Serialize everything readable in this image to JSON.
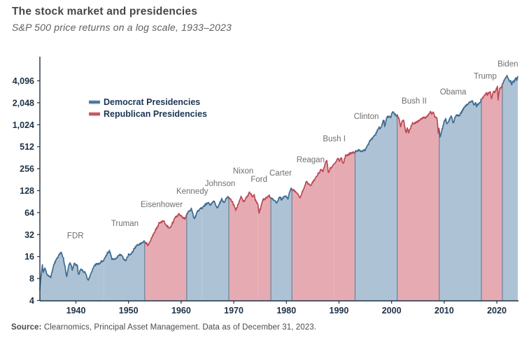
{
  "header": {
    "title": "The stock market and presidencies",
    "subtitle": "S&P 500 price returns on a log scale, 1933–2023"
  },
  "footer": {
    "source_label": "Source:",
    "source_text": " Clearnomics, Principal Asset Management. Data as of December 31, 2023."
  },
  "chart_data": {
    "type": "area",
    "title": "The stock market and presidencies",
    "subtitle": "S&P 500 price returns on a log scale, 1933–2023",
    "y_axis": {
      "scale": "log2",
      "tick_values": [
        4,
        8,
        16,
        32,
        64,
        128,
        256,
        512,
        1024,
        2048,
        4096
      ],
      "tick_labels": [
        "4",
        "8",
        "16",
        "32",
        "64",
        "128",
        "256",
        "512",
        "1,024",
        "2,048",
        "4,096"
      ],
      "range": [
        4,
        6800
      ]
    },
    "x_axis": {
      "tick_values": [
        1940,
        1950,
        1960,
        1970,
        1980,
        1990,
        2000,
        2010,
        2020
      ],
      "tick_labels": [
        "1940",
        "1950",
        "1960",
        "1970",
        "1980",
        "1990",
        "2000",
        "2010",
        "2020"
      ],
      "range": [
        1933.15,
        2023.99
      ]
    },
    "legend": [
      {
        "label": "Democrat Presidencies",
        "party": "democrat"
      },
      {
        "label": "Republican Presidencies",
        "party": "republican"
      }
    ],
    "colors": {
      "democrat_fill": "#adc3d5",
      "democrat_line": "#3e6b92",
      "republican_fill": "#e6abb2",
      "republican_line": "#bc4a55",
      "boundary": "#6c88a0",
      "axis": "#1d3145",
      "tick_label": "#1d3145",
      "president_label": "#6f6f6f",
      "legend_text": "#1c3552"
    },
    "presidents": [
      {
        "name": "FDR",
        "party": "democrat",
        "start": 1933.15,
        "end": 1945.3,
        "label_year": 1939.9,
        "label_value": 31
      },
      {
        "name": "Truman",
        "party": "democrat",
        "start": 1945.3,
        "end": 1953.06,
        "label_year": 1949.3,
        "label_value": 46
      },
      {
        "name": "Eisenhower",
        "party": "republican",
        "start": 1953.06,
        "end": 1961.06,
        "label_year": 1956.3,
        "label_value": 83
      },
      {
        "name": "Kennedy",
        "party": "democrat",
        "start": 1961.06,
        "end": 1963.9,
        "label_year": 1962.1,
        "label_value": 126
      },
      {
        "name": "Johnson",
        "party": "democrat",
        "start": 1963.9,
        "end": 1969.06,
        "label_year": 1967.4,
        "label_value": 161
      },
      {
        "name": "Nixon",
        "party": "republican",
        "start": 1969.06,
        "end": 1974.6,
        "label_year": 1971.8,
        "label_value": 240
      },
      {
        "name": "Ford",
        "party": "republican",
        "start": 1974.6,
        "end": 1977.06,
        "label_year": 1974.8,
        "label_value": 184
      },
      {
        "name": "Carter",
        "party": "democrat",
        "start": 1977.06,
        "end": 1981.06,
        "label_year": 1978.9,
        "label_value": 224
      },
      {
        "name": "Reagan",
        "party": "republican",
        "start": 1981.06,
        "end": 1989.06,
        "label_year": 1984.6,
        "label_value": 342
      },
      {
        "name": "Bush I",
        "party": "republican",
        "start": 1989.06,
        "end": 1993.06,
        "label_year": 1989.1,
        "label_value": 662
      },
      {
        "name": "Clinton",
        "party": "democrat",
        "start": 1993.06,
        "end": 2001.06,
        "label_year": 1995.2,
        "label_value": 1340
      },
      {
        "name": "Bush II",
        "party": "republican",
        "start": 2001.06,
        "end": 2009.06,
        "label_year": 2004.3,
        "label_value": 2180
      },
      {
        "name": "Obama",
        "party": "democrat",
        "start": 2009.06,
        "end": 2017.06,
        "label_year": 2011.7,
        "label_value": 2900
      },
      {
        "name": "Trump",
        "party": "republican",
        "start": 2017.06,
        "end": 2021.06,
        "label_year": 2017.8,
        "label_value": 4800
      },
      {
        "name": "Biden",
        "party": "democrat",
        "start": 2021.06,
        "end": 2023.99,
        "label_year": 2022.1,
        "label_value": 7000
      }
    ],
    "series_anchors": [
      [
        1933.15,
        5.6
      ],
      [
        1933.3,
        7.8
      ],
      [
        1933.62,
        12.2
      ],
      [
        1933.8,
        9.6
      ],
      [
        1934.1,
        11.2
      ],
      [
        1934.6,
        8.8
      ],
      [
        1935.2,
        8.3
      ],
      [
        1935.9,
        13.0
      ],
      [
        1936.9,
        17.2
      ],
      [
        1937.2,
        18.6
      ],
      [
        1937.6,
        15.2
      ],
      [
        1938.25,
        8.6
      ],
      [
        1938.6,
        11.8
      ],
      [
        1938.9,
        13.1
      ],
      [
        1939.3,
        10.7
      ],
      [
        1939.75,
        12.9
      ],
      [
        1940.3,
        12.0
      ],
      [
        1940.45,
        8.9
      ],
      [
        1940.9,
        10.6
      ],
      [
        1941.7,
        9.8
      ],
      [
        1942.35,
        7.5
      ],
      [
        1943.1,
        10.5
      ],
      [
        1943.6,
        12.2
      ],
      [
        1944.5,
        12.9
      ],
      [
        1945.3,
        14.3
      ],
      [
        1945.95,
        17.7
      ],
      [
        1946.4,
        19.2
      ],
      [
        1946.85,
        14.7
      ],
      [
        1947.5,
        15.1
      ],
      [
        1948.45,
        17.0
      ],
      [
        1949.45,
        13.9
      ],
      [
        1950.0,
        16.8
      ],
      [
        1950.55,
        17.7
      ],
      [
        1951.4,
        22.0
      ],
      [
        1952.3,
        24.0
      ],
      [
        1953.06,
        26.2
      ],
      [
        1953.7,
        22.7
      ],
      [
        1954.8,
        33.0
      ],
      [
        1955.8,
        45.5
      ],
      [
        1956.6,
        49.6
      ],
      [
        1957.1,
        43.7
      ],
      [
        1957.85,
        39.0
      ],
      [
        1958.9,
        55.0
      ],
      [
        1959.6,
        60.5
      ],
      [
        1960.2,
        55.3
      ],
      [
        1960.85,
        52.5
      ],
      [
        1961.06,
        61.0
      ],
      [
        1961.95,
        72.6
      ],
      [
        1962.5,
        52.3
      ],
      [
        1963.1,
        66.0
      ],
      [
        1963.9,
        74.0
      ],
      [
        1965.1,
        87.0
      ],
      [
        1965.55,
        81.6
      ],
      [
        1966.15,
        94.0
      ],
      [
        1966.8,
        73.2
      ],
      [
        1967.75,
        97.5
      ],
      [
        1968.2,
        87.7
      ],
      [
        1968.9,
        108.4
      ],
      [
        1969.06,
        102.0
      ],
      [
        1969.6,
        94.0
      ],
      [
        1970.4,
        69.3
      ],
      [
        1971.35,
        104.8
      ],
      [
        1971.9,
        90.2
      ],
      [
        1973.0,
        119.9
      ],
      [
        1973.65,
        103.0
      ],
      [
        1973.85,
        111.0
      ],
      [
        1974.2,
        90.0
      ],
      [
        1974.6,
        86.0
      ],
      [
        1974.78,
        62.3
      ],
      [
        1975.55,
        95.2
      ],
      [
        1976.1,
        100.9
      ],
      [
        1976.75,
        107.8
      ],
      [
        1977.06,
        102.0
      ],
      [
        1978.2,
        86.9
      ],
      [
        1978.7,
        106.0
      ],
      [
        1979.1,
        96.7
      ],
      [
        1979.8,
        111.0
      ],
      [
        1980.25,
        98.2
      ],
      [
        1980.9,
        140.5
      ],
      [
        1981.06,
        131.0
      ],
      [
        1981.9,
        122.5
      ],
      [
        1982.6,
        102.4
      ],
      [
        1983.8,
        172.0
      ],
      [
        1984.55,
        147.8
      ],
      [
        1985.5,
        190.0
      ],
      [
        1986.7,
        253.0
      ],
      [
        1986.95,
        236.0
      ],
      [
        1987.65,
        336.0
      ],
      [
        1987.83,
        282.0
      ],
      [
        1987.95,
        224.0
      ],
      [
        1988.35,
        258.0
      ],
      [
        1989.06,
        287.0
      ],
      [
        1989.8,
        359.0
      ],
      [
        1990.1,
        330.0
      ],
      [
        1990.45,
        368.0
      ],
      [
        1990.8,
        295.0
      ],
      [
        1991.2,
        380.0
      ],
      [
        1992.1,
        412.0
      ],
      [
        1993.06,
        435.0
      ],
      [
        1993.85,
        466.0
      ],
      [
        1994.3,
        445.0
      ],
      [
        1994.95,
        460.0
      ],
      [
        1995.95,
        615.0
      ],
      [
        1996.95,
        757.0
      ],
      [
        1997.6,
        954.0
      ],
      [
        1997.85,
        877.0
      ],
      [
        1998.35,
        1120.0
      ],
      [
        1998.55,
        1186.0
      ],
      [
        1998.7,
        957.0
      ],
      [
        1999.05,
        1275.0
      ],
      [
        1999.4,
        1330.0
      ],
      [
        1999.8,
        1280.0
      ],
      [
        2000.22,
        1527.0
      ],
      [
        2000.65,
        1430.0
      ],
      [
        2000.95,
        1320.0
      ],
      [
        2001.06,
        1366.0
      ],
      [
        2001.45,
        1240.0
      ],
      [
        2001.73,
        966.0
      ],
      [
        2002.05,
        1160.0
      ],
      [
        2002.3,
        1170.0
      ],
      [
        2002.77,
        777.0
      ],
      [
        2002.95,
        936.0
      ],
      [
        2003.22,
        800.0
      ],
      [
        2003.95,
        1058.0
      ],
      [
        2004.6,
        1100.0
      ],
      [
        2005.9,
        1270.0
      ],
      [
        2006.5,
        1280.0
      ],
      [
        2007.4,
        1530.0
      ],
      [
        2007.63,
        1455.0
      ],
      [
        2007.78,
        1565.0
      ],
      [
        2008.2,
        1330.0
      ],
      [
        2008.65,
        1280.0
      ],
      [
        2008.88,
        752.0
      ],
      [
        2009.02,
        930.0
      ],
      [
        2009.2,
        677.0
      ],
      [
        2009.95,
        1100.0
      ],
      [
        2010.3,
        1217.0
      ],
      [
        2010.55,
        1030.0
      ],
      [
        2011.35,
        1363.0
      ],
      [
        2011.62,
        1120.0
      ],
      [
        2011.77,
        1099.0
      ],
      [
        2012.3,
        1400.0
      ],
      [
        2012.9,
        1380.0
      ],
      [
        2013.95,
        1800.0
      ],
      [
        2014.95,
        2090.0
      ],
      [
        2015.4,
        2130.0
      ],
      [
        2015.65,
        1868.0
      ],
      [
        2015.95,
        2080.0
      ],
      [
        2016.12,
        1829.0
      ],
      [
        2016.95,
        2190.0
      ],
      [
        2017.06,
        2271.0
      ],
      [
        2018.07,
        2873.0
      ],
      [
        2018.16,
        2581.0
      ],
      [
        2018.73,
        2931.0
      ],
      [
        2018.99,
        2351.0
      ],
      [
        2019.35,
        2946.0
      ],
      [
        2019.6,
        2847.0
      ],
      [
        2019.97,
        3230.0
      ],
      [
        2020.13,
        3386.0
      ],
      [
        2020.23,
        2237.0
      ],
      [
        2020.45,
        2920.0
      ],
      [
        2020.68,
        3390.0
      ],
      [
        2020.85,
        3270.0
      ],
      [
        2021.06,
        3770.0
      ],
      [
        2021.4,
        4180.0
      ],
      [
        2021.75,
        4530.0
      ],
      [
        2022.0,
        4766.0
      ],
      [
        2022.2,
        4350.0
      ],
      [
        2022.48,
        3900.0
      ],
      [
        2022.63,
        4280.0
      ],
      [
        2022.78,
        3577.0
      ],
      [
        2023.1,
        4100.0
      ],
      [
        2023.3,
        3970.0
      ],
      [
        2023.58,
        4550.0
      ],
      [
        2023.83,
        4117.0
      ],
      [
        2023.99,
        4770.0
      ]
    ]
  }
}
